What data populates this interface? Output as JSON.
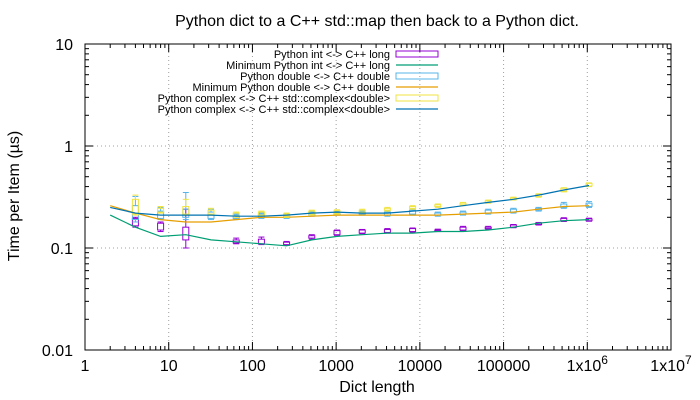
{
  "chart_data": {
    "type": "line",
    "title": "Python dict to a C++ std::map then back to a Python dict.",
    "xlabel": "Dict length",
    "ylabel": "Time per Item (µs)",
    "xscale": "log",
    "yscale": "log",
    "xlim": [
      1,
      10000000
    ],
    "ylim": [
      0.01,
      10
    ],
    "grid": true,
    "legend_position": "top-right",
    "x_tick_labels": [
      "1",
      "10",
      "100",
      "1000",
      "10000",
      "100000",
      "1x10^6",
      "1x10^7"
    ],
    "y_tick_labels": [
      "10",
      "1",
      "0.1",
      "0.01"
    ],
    "series": [
      {
        "name": "Python int <-> C++ long",
        "style": "candlestick",
        "color": "#9400d3",
        "x": [
          4,
          8,
          16,
          64,
          128,
          256,
          512,
          1024,
          2048,
          4096,
          8192,
          16384,
          32768,
          65536,
          131072,
          262144,
          524288,
          1048576
        ],
        "box_low": [
          0.165,
          0.15,
          0.12,
          0.112,
          0.11,
          0.108,
          0.125,
          0.135,
          0.14,
          0.142,
          0.145,
          0.147,
          0.15,
          0.155,
          0.16,
          0.17,
          0.185,
          0.185
        ],
        "box_high": [
          0.195,
          0.175,
          0.16,
          0.12,
          0.122,
          0.114,
          0.132,
          0.148,
          0.15,
          0.152,
          0.155,
          0.15,
          0.16,
          0.16,
          0.168,
          0.175,
          0.195,
          0.193
        ],
        "whisker_low": [
          0.16,
          0.145,
          0.1,
          0.11,
          0.108,
          0.106,
          0.122,
          0.133,
          0.138,
          0.14,
          0.143,
          0.145,
          0.148,
          0.152,
          0.158,
          0.168,
          0.182,
          0.183
        ],
        "whisker_high": [
          0.2,
          0.18,
          0.24,
          0.125,
          0.128,
          0.116,
          0.135,
          0.15,
          0.152,
          0.155,
          0.157,
          0.153,
          0.163,
          0.163,
          0.17,
          0.178,
          0.198,
          0.196
        ]
      },
      {
        "name": "Minimum Python int <-> C++ long",
        "style": "line",
        "color": "#009e73",
        "x": [
          2,
          4,
          8,
          16,
          32,
          64,
          128,
          256,
          512,
          1024,
          2048,
          4096,
          8192,
          16384,
          32768,
          65536,
          131072,
          262144,
          524288,
          1048576
        ],
        "y": [
          0.21,
          0.16,
          0.13,
          0.135,
          0.12,
          0.115,
          0.11,
          0.105,
          0.12,
          0.13,
          0.135,
          0.14,
          0.14,
          0.145,
          0.145,
          0.15,
          0.16,
          0.175,
          0.185,
          0.19
        ]
      },
      {
        "name": "Python double <-> C++ double",
        "style": "candlestick",
        "color": "#56b4e9",
        "x": [
          4,
          8,
          16,
          32,
          64,
          128,
          256,
          512,
          1024,
          2048,
          4096,
          8192,
          16384,
          32768,
          65536,
          131072,
          262144,
          524288,
          1048576
        ],
        "box_low": [
          0.19,
          0.195,
          0.2,
          0.195,
          0.195,
          0.2,
          0.2,
          0.21,
          0.215,
          0.215,
          0.21,
          0.215,
          0.21,
          0.215,
          0.22,
          0.225,
          0.235,
          0.25,
          0.255
        ],
        "box_high": [
          0.26,
          0.23,
          0.24,
          0.225,
          0.21,
          0.215,
          0.21,
          0.225,
          0.225,
          0.225,
          0.225,
          0.235,
          0.22,
          0.225,
          0.235,
          0.24,
          0.245,
          0.27,
          0.275
        ],
        "whisker_low": [
          0.18,
          0.19,
          0.19,
          0.19,
          0.19,
          0.195,
          0.195,
          0.205,
          0.21,
          0.21,
          0.205,
          0.21,
          0.205,
          0.21,
          0.215,
          0.22,
          0.23,
          0.245,
          0.25
        ],
        "whisker_high": [
          0.32,
          0.25,
          0.35,
          0.24,
          0.215,
          0.22,
          0.215,
          0.23,
          0.23,
          0.23,
          0.23,
          0.24,
          0.225,
          0.23,
          0.24,
          0.245,
          0.25,
          0.28,
          0.285
        ]
      },
      {
        "name": "Minimum Python double <-> C++ double",
        "style": "line",
        "color": "#e69f00",
        "x": [
          2,
          4,
          8,
          16,
          32,
          64,
          128,
          256,
          512,
          1024,
          2048,
          4096,
          8192,
          16384,
          32768,
          65536,
          131072,
          262144,
          524288,
          1048576
        ],
        "y": [
          0.26,
          0.22,
          0.19,
          0.18,
          0.18,
          0.19,
          0.2,
          0.2,
          0.205,
          0.21,
          0.21,
          0.21,
          0.21,
          0.21,
          0.215,
          0.22,
          0.225,
          0.24,
          0.255,
          0.26
        ]
      },
      {
        "name": "Python complex <-> C++ std::complex<double>",
        "style": "candlestick",
        "color": "#f0e442",
        "x": [
          4,
          8,
          16,
          32,
          64,
          128,
          256,
          512,
          1024,
          2048,
          4096,
          8192,
          16384,
          32768,
          65536,
          131072,
          262144,
          524288,
          1048576
        ],
        "box_low": [
          0.215,
          0.225,
          0.215,
          0.215,
          0.205,
          0.21,
          0.205,
          0.215,
          0.22,
          0.225,
          0.235,
          0.245,
          0.255,
          0.265,
          0.28,
          0.3,
          0.32,
          0.36,
          0.405
        ],
        "box_high": [
          0.3,
          0.245,
          0.255,
          0.235,
          0.22,
          0.225,
          0.215,
          0.23,
          0.232,
          0.235,
          0.245,
          0.255,
          0.265,
          0.275,
          0.29,
          0.31,
          0.335,
          0.385,
          0.43
        ],
        "whisker_low": [
          0.21,
          0.22,
          0.21,
          0.21,
          0.2,
          0.205,
          0.2,
          0.21,
          0.215,
          0.22,
          0.23,
          0.24,
          0.25,
          0.26,
          0.275,
          0.295,
          0.315,
          0.355,
          0.4
        ],
        "whisker_high": [
          0.33,
          0.255,
          0.3,
          0.245,
          0.225,
          0.23,
          0.22,
          0.235,
          0.237,
          0.24,
          0.25,
          0.26,
          0.27,
          0.28,
          0.295,
          0.315,
          0.34,
          0.39,
          0.435
        ]
      },
      {
        "name": "Python complex <-> C++ std::complex<double>",
        "style": "line",
        "color": "#0072b2",
        "x": [
          2,
          4,
          8,
          16,
          32,
          64,
          128,
          256,
          512,
          1024,
          2048,
          4096,
          8192,
          16384,
          32768,
          65536,
          131072,
          262144,
          524288,
          1048576
        ],
        "y": [
          0.25,
          0.22,
          0.21,
          0.21,
          0.21,
          0.205,
          0.205,
          0.21,
          0.22,
          0.225,
          0.22,
          0.22,
          0.23,
          0.24,
          0.26,
          0.28,
          0.3,
          0.33,
          0.37,
          0.41
        ]
      }
    ]
  }
}
